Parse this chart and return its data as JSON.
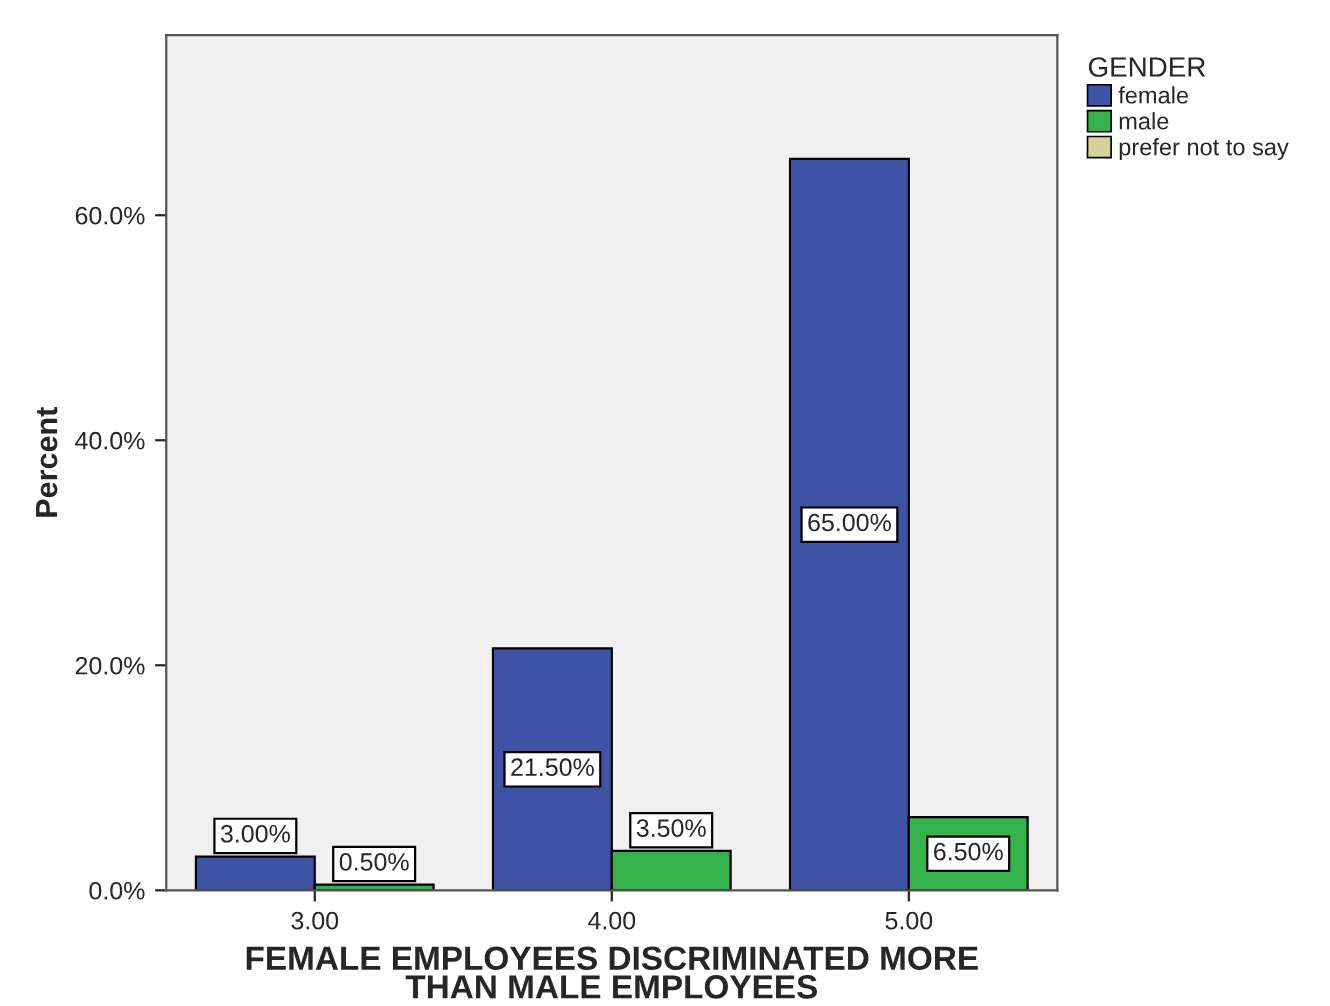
{
  "chart_data": {
    "type": "bar",
    "xlabel": "FEMALE EMPLOYEES DISCRIMINATED MORE\nTHAN MALE EMPLOYEES",
    "ylabel": "Percent",
    "legend_title": "GENDER",
    "categories": [
      "3.00",
      "4.00",
      "5.00"
    ],
    "series": [
      {
        "name": "female",
        "color": "#3e53a5",
        "values": [
          3.0,
          21.5,
          65.0
        ],
        "value_labels": [
          "3.00%",
          "21.50%",
          "65.00%"
        ]
      },
      {
        "name": "male",
        "color": "#33b34a",
        "values": [
          0.5,
          3.5,
          6.5
        ],
        "value_labels": [
          "0.50%",
          "3.50%",
          "6.50%"
        ]
      },
      {
        "name": "prefer not to say",
        "color": "#d5d29a",
        "values": [
          null,
          null,
          null
        ]
      }
    ],
    "ylim": [
      0,
      76
    ],
    "yticks": [
      {
        "value": 0,
        "label": "0.0%"
      },
      {
        "value": 20,
        "label": "20.0%"
      },
      {
        "value": 40,
        "label": "40.0%"
      },
      {
        "value": 60,
        "label": "60.0%"
      }
    ],
    "legend": "right",
    "grid": false
  }
}
